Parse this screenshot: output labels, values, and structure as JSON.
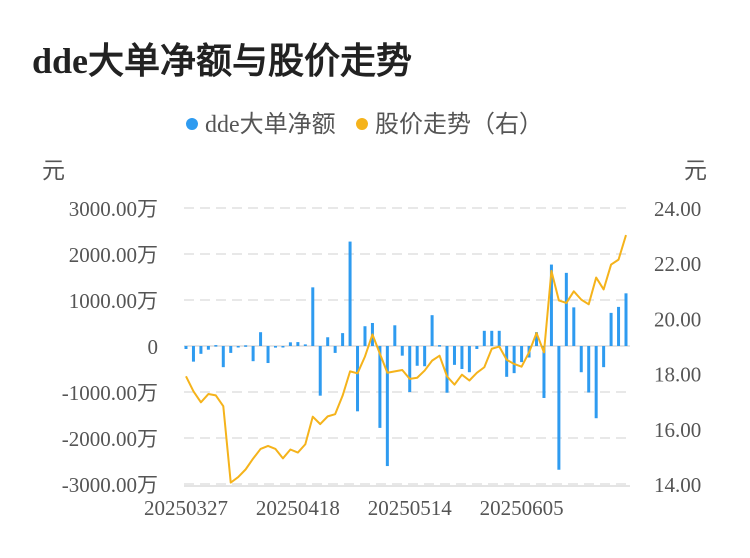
{
  "title": "dde大单净额与股价走势",
  "chart_data": {
    "type": "bar+line",
    "legend": {
      "placement": "top-center",
      "items": [
        {
          "name": "dde大单净额",
          "color": "#2e9bf0"
        },
        {
          "name": "股价走势（右）",
          "color": "#f5b31b"
        }
      ]
    },
    "left_axis": {
      "unit": "元",
      "ylim": [
        -3000,
        3000
      ],
      "tick_labels": [
        "3000.00万",
        "2000.00万",
        "1000.00万",
        "0",
        "-1000.00万",
        "-2000.00万",
        "-3000.00万"
      ],
      "tick_values": [
        3000,
        2000,
        1000,
        0,
        -1000,
        -2000,
        -3000
      ]
    },
    "right_axis": {
      "unit": "元",
      "ylim": [
        14,
        24
      ],
      "tick_labels": [
        "24.00",
        "22.00",
        "20.00",
        "18.00",
        "16.00",
        "14.00"
      ],
      "tick_values": [
        24,
        22,
        20,
        18,
        16,
        14
      ]
    },
    "x_tick_labels": [
      {
        "index": 0,
        "label": "20250327"
      },
      {
        "index": 15,
        "label": "20250418"
      },
      {
        "index": 30,
        "label": "20250514"
      },
      {
        "index": 45,
        "label": "20250605"
      }
    ],
    "grid": true,
    "series": [
      {
        "name": "dde大单净额",
        "type": "bar",
        "unit": "万元",
        "values": [
          -65,
          -340,
          -170,
          -80,
          20,
          -460,
          -150,
          -20,
          15,
          -330,
          300,
          -370,
          -35,
          -20,
          80,
          85,
          35,
          1275,
          -1080,
          190,
          -150,
          280,
          2270,
          -1420,
          430,
          500,
          -1780,
          -2610,
          450,
          -210,
          -1000,
          -430,
          -440,
          670,
          20,
          -1015,
          -410,
          -500,
          -570,
          -65,
          330,
          330,
          330,
          -670,
          -590,
          -350,
          -250,
          300,
          -1130,
          1770,
          -2690,
          1590,
          840,
          -570,
          -1010,
          -1570,
          -460,
          720,
          850,
          1145
        ]
      },
      {
        "name": "股价走势（右）",
        "type": "line",
        "axis": "right",
        "values": [
          17.9,
          17.36,
          16.96,
          17.26,
          17.21,
          16.82,
          14.05,
          14.25,
          14.53,
          14.92,
          15.27,
          15.38,
          15.27,
          14.93,
          15.25,
          15.14,
          15.44,
          16.44,
          16.17,
          16.45,
          16.53,
          17.2,
          18.08,
          18.01,
          18.62,
          19.42,
          18.72,
          18.03,
          18.08,
          18.13,
          17.81,
          17.85,
          18.11,
          18.47,
          18.65,
          17.9,
          17.6,
          17.96,
          17.75,
          18.03,
          18.23,
          18.9,
          18.98,
          18.5,
          18.35,
          18.25,
          18.77,
          19.47,
          18.77,
          21.72,
          20.65,
          20.56,
          20.98,
          20.68,
          20.51,
          21.48,
          21.05,
          21.95,
          22.13,
          23.02
        ]
      }
    ]
  }
}
